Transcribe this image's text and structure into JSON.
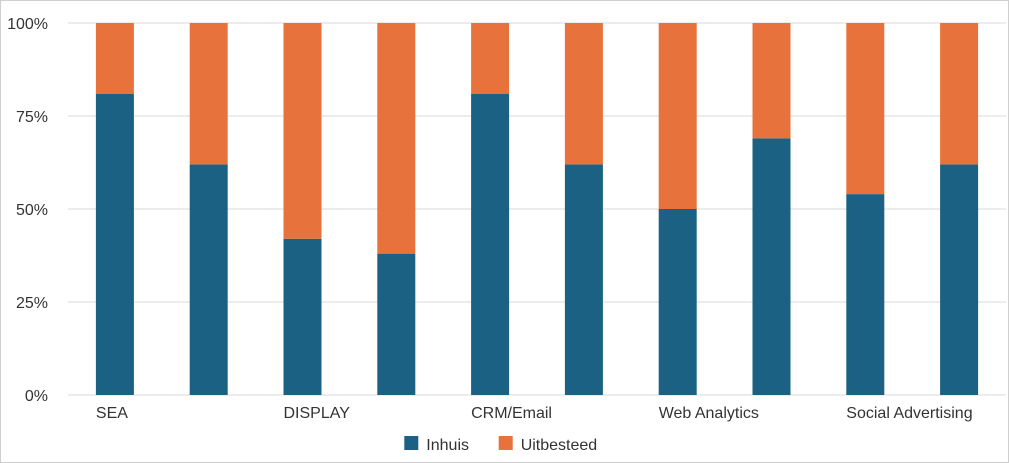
{
  "chart_data": {
    "type": "bar",
    "stacked": "percent",
    "categories": [
      "SEA",
      "",
      "DISPLAY",
      "",
      "CRM/Email",
      "",
      "Web Analytics",
      "",
      "Social Advertising",
      ""
    ],
    "series": [
      {
        "name": "Inhuis",
        "color": "#1a6183",
        "values": [
          81,
          62,
          42,
          38,
          81,
          62,
          50,
          69,
          54,
          62
        ]
      },
      {
        "name": "Uitbesteed",
        "color": "#e8723b",
        "values": [
          19,
          38,
          58,
          62,
          19,
          38,
          50,
          31,
          46,
          38
        ]
      }
    ],
    "ylim": [
      0,
      100
    ],
    "yticks": [
      "0%",
      "25%",
      "50%",
      "75%",
      "100%"
    ],
    "grid": true,
    "legend": "bottom"
  }
}
